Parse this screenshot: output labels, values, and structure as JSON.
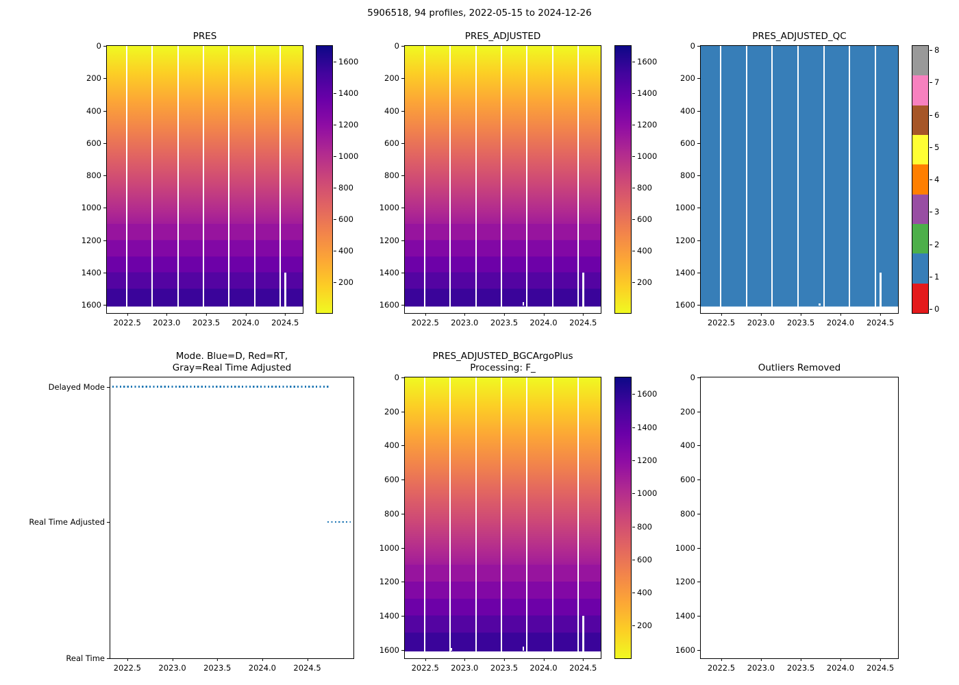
{
  "figure": {
    "title": "5906518, 94 profiles, 2022-05-15 to 2024-12-26"
  },
  "plots": {
    "pres": {
      "title": "PRES"
    },
    "pres_adjusted": {
      "title": "PRES_ADJUSTED"
    },
    "pres_adjusted_qc": {
      "title": "PRES_ADJUSTED_QC"
    },
    "mode": {
      "title_line1": "Mode. Blue=D, Red=RT,",
      "title_line2": "Gray=Real Time Adjusted"
    },
    "bgc": {
      "title_line1": "PRES_ADJUSTED_BGCArgoPlus",
      "title_line2": "Processing: F_"
    },
    "outliers": {
      "title": "Outliers Removed"
    }
  },
  "colors": {
    "qc_flag_1_fill": "#377eb8",
    "mode_line": "#1f77b4",
    "colormap_low": "#f0f921",
    "colormap_high": "#0d0887",
    "axis": "#000000"
  },
  "axes": {
    "pressure_ticks": [
      {
        "label": "0",
        "pos": 0
      },
      {
        "label": "200",
        "pos": 12.12
      },
      {
        "label": "400",
        "pos": 24.24
      },
      {
        "label": "600",
        "pos": 36.36
      },
      {
        "label": "800",
        "pos": 48.48
      },
      {
        "label": "1000",
        "pos": 60.61
      },
      {
        "label": "1200",
        "pos": 72.73
      },
      {
        "label": "1400",
        "pos": 84.85
      },
      {
        "label": "1600",
        "pos": 96.97
      }
    ],
    "year_ticks_heatmap": [
      {
        "label": "2022.5",
        "pos": 10.4
      },
      {
        "label": "2023.0",
        "pos": 30.5
      },
      {
        "label": "2023.5",
        "pos": 50.7
      },
      {
        "label": "2024.0",
        "pos": 70.8
      },
      {
        "label": "2024.5",
        "pos": 91.0
      }
    ],
    "year_ticks_mode": [
      {
        "label": "2022.5",
        "pos": 7.0
      },
      {
        "label": "2023.0",
        "pos": 25.5
      },
      {
        "label": "2023.5",
        "pos": 44.0
      },
      {
        "label": "2024.0",
        "pos": 62.5
      },
      {
        "label": "2024.5",
        "pos": 81.0
      }
    ],
    "mode_y_ticks": [
      {
        "label": "Delayed Mode",
        "pos": 3.3
      },
      {
        "label": "Real Time Adjusted",
        "pos": 51.5
      },
      {
        "label": "Real Time",
        "pos": 100
      }
    ],
    "plasma_cb_ticks": [
      {
        "label": "1600",
        "pos": 5.9
      },
      {
        "label": "1400",
        "pos": 17.7
      },
      {
        "label": "1200",
        "pos": 29.5
      },
      {
        "label": "1000",
        "pos": 41.3
      },
      {
        "label": "800",
        "pos": 53.1
      },
      {
        "label": "600",
        "pos": 64.9
      },
      {
        "label": "400",
        "pos": 76.7
      },
      {
        "label": "200",
        "pos": 88.4
      }
    ],
    "qc_cb_ticks": [
      {
        "label": "8",
        "pos": 1.5
      },
      {
        "label": "7",
        "pos": 13.6
      },
      {
        "label": "6",
        "pos": 25.8
      },
      {
        "label": "5",
        "pos": 37.9
      },
      {
        "label": "4",
        "pos": 50.0
      },
      {
        "label": "3",
        "pos": 62.1
      },
      {
        "label": "2",
        "pos": 74.3
      },
      {
        "label": "1",
        "pos": 86.4
      },
      {
        "label": "0",
        "pos": 98.5
      }
    ],
    "qc_colorbar_segments": [
      "#999999",
      "#f781bf",
      "#a65628",
      "#ffff33",
      "#ff7f00",
      "#984ea3",
      "#4daf4a",
      "#377eb8",
      "#e41a1c"
    ]
  },
  "marks": {
    "pres": [
      {
        "name": "profile-gap",
        "l": 9.8,
        "t": 0,
        "w": 0.7,
        "h": 97.6
      },
      {
        "name": "profile-gap",
        "l": 22.85,
        "t": 0,
        "w": 0.7,
        "h": 97.6
      },
      {
        "name": "profile-gap",
        "l": 35.9,
        "t": 0,
        "w": 0.7,
        "h": 97.6
      },
      {
        "name": "profile-gap",
        "l": 48.95,
        "t": 0,
        "w": 0.7,
        "h": 97.6
      },
      {
        "name": "profile-gap",
        "l": 62.0,
        "t": 0,
        "w": 0.7,
        "h": 97.6
      },
      {
        "name": "profile-gap",
        "l": 75.05,
        "t": 0,
        "w": 0.7,
        "h": 97.6
      },
      {
        "name": "profile-gap",
        "l": 88.1,
        "t": 0,
        "w": 0.7,
        "h": 97.6
      },
      {
        "name": "missing-deep-segment",
        "l": 90.7,
        "t": 84.8,
        "w": 1.0,
        "h": 12.8
      }
    ],
    "pres_adjusted": [
      {
        "name": "profile-gap",
        "l": 9.8,
        "t": 0,
        "w": 0.7,
        "h": 97.6
      },
      {
        "name": "profile-gap",
        "l": 22.85,
        "t": 0,
        "w": 0.7,
        "h": 97.6
      },
      {
        "name": "profile-gap",
        "l": 35.9,
        "t": 0,
        "w": 0.7,
        "h": 97.6
      },
      {
        "name": "profile-gap",
        "l": 48.95,
        "t": 0,
        "w": 0.7,
        "h": 97.6
      },
      {
        "name": "profile-gap",
        "l": 62.0,
        "t": 0,
        "w": 0.7,
        "h": 97.6
      },
      {
        "name": "profile-gap",
        "l": 75.05,
        "t": 0,
        "w": 0.7,
        "h": 97.6
      },
      {
        "name": "profile-gap",
        "l": 88.1,
        "t": 0,
        "w": 0.7,
        "h": 97.6
      },
      {
        "name": "missing-deep-segment",
        "l": 90.7,
        "t": 84.8,
        "w": 1.0,
        "h": 12.8
      },
      {
        "name": "missing-bottom-sample",
        "l": 60.0,
        "t": 95.8,
        "w": 0.9,
        "h": 1.4
      }
    ],
    "qc": [
      {
        "name": "profile-gap",
        "l": 9.8,
        "t": 0,
        "w": 0.7,
        "h": 97.6
      },
      {
        "name": "profile-gap",
        "l": 22.85,
        "t": 0,
        "w": 0.7,
        "h": 97.6
      },
      {
        "name": "profile-gap",
        "l": 35.9,
        "t": 0,
        "w": 0.7,
        "h": 97.6
      },
      {
        "name": "profile-gap",
        "l": 48.95,
        "t": 0,
        "w": 0.7,
        "h": 97.6
      },
      {
        "name": "profile-gap",
        "l": 62.0,
        "t": 0,
        "w": 0.7,
        "h": 97.6
      },
      {
        "name": "profile-gap",
        "l": 75.05,
        "t": 0,
        "w": 0.7,
        "h": 97.6
      },
      {
        "name": "profile-gap",
        "l": 88.1,
        "t": 0,
        "w": 0.7,
        "h": 97.6
      },
      {
        "name": "missing-deep-segment",
        "l": 90.7,
        "t": 84.8,
        "w": 1.0,
        "h": 12.8
      },
      {
        "name": "missing-bottom-sample",
        "l": 59.8,
        "t": 96.4,
        "w": 0.8,
        "h": 0.8
      }
    ],
    "bgc": [
      {
        "name": "profile-gap",
        "l": 9.8,
        "t": 0,
        "w": 0.7,
        "h": 97.6
      },
      {
        "name": "profile-gap",
        "l": 22.85,
        "t": 0,
        "w": 0.7,
        "h": 97.6
      },
      {
        "name": "profile-gap",
        "l": 35.9,
        "t": 0,
        "w": 0.7,
        "h": 97.6
      },
      {
        "name": "profile-gap",
        "l": 48.95,
        "t": 0,
        "w": 0.7,
        "h": 97.6
      },
      {
        "name": "profile-gap",
        "l": 62.0,
        "t": 0,
        "w": 0.7,
        "h": 97.6
      },
      {
        "name": "profile-gap",
        "l": 75.05,
        "t": 0,
        "w": 0.7,
        "h": 97.6
      },
      {
        "name": "profile-gap",
        "l": 88.1,
        "t": 0,
        "w": 0.7,
        "h": 97.6
      },
      {
        "name": "missing-deep-segment",
        "l": 90.7,
        "t": 84.8,
        "w": 0.9,
        "h": 12.8
      },
      {
        "name": "missing-bottom-sample",
        "l": 23.4,
        "t": 96.4,
        "w": 0.7,
        "h": 0.8
      },
      {
        "name": "missing-bottom-sample",
        "l": 60.0,
        "t": 95.8,
        "w": 0.9,
        "h": 1.4
      }
    ],
    "mode": [
      {
        "name": "mode-line-delayed",
        "l": 0.8,
        "t": 3.0,
        "w": 89.7,
        "h": 0.6,
        "cls": "dotline"
      },
      {
        "name": "mode-line-rt-adjusted",
        "l": 89.2,
        "t": 51.2,
        "w": 9.8,
        "h": 0.6,
        "cls": "dotline"
      }
    ]
  },
  "chart_data": [
    {
      "type": "heatmap",
      "title": "PRES",
      "x": "profile time (decimal year)",
      "xlim": [
        2022.37,
        2024.99
      ],
      "xticks": [
        2022.5,
        2023.0,
        2023.5,
        2024.0,
        2024.5
      ],
      "y": "depth level (dbar)",
      "ylim": [
        1650,
        0
      ],
      "yticks": [
        0,
        200,
        400,
        600,
        800,
        1000,
        1200,
        1400,
        1600
      ],
      "value": "pressure (dbar); equals sample depth, grading smoothly from ~0 at surface to ~1610 at deepest level",
      "value_range": [
        4,
        1610
      ],
      "colorbar_range": [
        4,
        1700
      ],
      "colorbar_ticks": [
        200,
        400,
        600,
        800,
        1000,
        1200,
        1400,
        1600
      ],
      "colormap": "plasma reversed (yellow = low pressure, dark navy = high pressure)",
      "vertical_resolution": "fine above 1100 dbar, uniform 100-dbar blocks 1100-1600 dbar",
      "n_profiles": 94,
      "missing_data": "7 thin white time gaps evenly spaced across the record; one profile near 2024.7 missing below ~1390 dbar"
    },
    {
      "type": "heatmap",
      "title": "PRES_ADJUSTED",
      "x": "profile time (decimal year)",
      "xlim": [
        2022.37,
        2024.99
      ],
      "xticks": [
        2022.5,
        2023.0,
        2023.5,
        2024.0,
        2024.5
      ],
      "ylim": [
        1650,
        0
      ],
      "yticks": [
        0,
        200,
        400,
        600,
        800,
        1000,
        1200,
        1400,
        1600
      ],
      "value": "adjusted pressure (dbar), visually identical to PRES",
      "value_range": [
        4,
        1610
      ],
      "colorbar_ticks": [
        200,
        400,
        600,
        800,
        1000,
        1200,
        1400,
        1600
      ],
      "colormap": "plasma reversed (yellow = low, dark navy = high)",
      "missing_data": "same gaps as PRES plus one missing bottom sample near 2023.9"
    },
    {
      "type": "heatmap",
      "title": "PRES_ADJUSTED_QC",
      "x": "profile time (decimal year)",
      "xticks": [
        2022.5,
        2023.0,
        2023.5,
        2024.0,
        2024.5
      ],
      "ylim": [
        1650,
        0
      ],
      "yticks": [
        0,
        200,
        400,
        600,
        800,
        1000,
        1200,
        1400,
        1600
      ],
      "uniform_value": 1,
      "value_meaning": "QC flag = 1 (good data) for every sample",
      "colormap": "Set1 discrete, flags 0-8",
      "colorbar_ticks": [
        0,
        1,
        2,
        3,
        4,
        5,
        6,
        7,
        8
      ],
      "flag_colors": {
        "0": "#e41a1c",
        "1": "#377eb8",
        "2": "#4daf4a",
        "3": "#984ea3",
        "4": "#ff7f00",
        "5": "#ffff33",
        "6": "#a65628",
        "7": "#f781bf",
        "8": "#999999"
      }
    },
    {
      "type": "line",
      "title": "Mode. Blue=D, Red=RT, Gray=Real Time Adjusted",
      "y_categories": [
        "Real Time",
        "Real Time Adjusted",
        "Delayed Mode"
      ],
      "xticks": [
        2022.5,
        2023.0,
        2023.5,
        2024.0,
        2024.5
      ],
      "series": [
        {
          "name": "Delayed Mode",
          "style": "dotted",
          "color": "#1f77b4",
          "x_start": 2022.4,
          "x_end": 2024.6
        },
        {
          "name": "Real Time Adjusted",
          "style": "dotted",
          "color": "#1f77b4",
          "x_start": 2024.62,
          "x_end": 2024.99
        }
      ]
    },
    {
      "type": "heatmap",
      "title": "PRES_ADJUSTED_BGCArgoPlus Processing: F_",
      "x": "profile time (decimal year)",
      "xticks": [
        2022.5,
        2023.0,
        2023.5,
        2024.0,
        2024.5
      ],
      "ylim": [
        1650,
        0
      ],
      "yticks": [
        0,
        200,
        400,
        600,
        800,
        1000,
        1200,
        1400,
        1600
      ],
      "value": "BGC-Argo-Plus processed adjusted pressure (dbar), visually identical to PRES",
      "value_range": [
        4,
        1610
      ],
      "colorbar_ticks": [
        200,
        400,
        600,
        800,
        1000,
        1200,
        1400,
        1600
      ],
      "colormap": "plasma reversed (yellow = low, dark navy = high)",
      "missing_data": "same gaps as PRES plus missing bottom samples near 2023.0 and 2023.9"
    },
    {
      "type": "empty",
      "title": "Outliers Removed",
      "note": "axes drawn but no outlier points plotted",
      "xticks": [
        2022.5,
        2023.0,
        2023.5,
        2024.0,
        2024.5
      ],
      "ylim": [
        1650,
        0
      ],
      "yticks": [
        0,
        200,
        400,
        600,
        800,
        1000,
        1200,
        1400,
        1600
      ]
    }
  ]
}
